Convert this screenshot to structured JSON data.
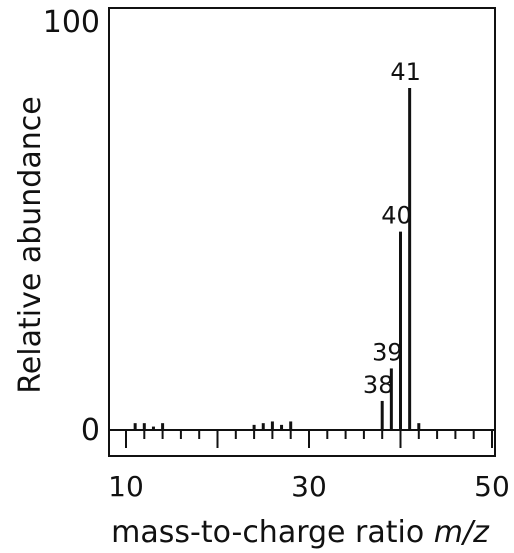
{
  "chart_data": {
    "type": "bar",
    "xlabel": "mass-to-charge ratio",
    "xlabel_italic": "m/z",
    "ylabel": "Relative abundance",
    "xlim": [
      10,
      50
    ],
    "ylim": [
      0,
      100
    ],
    "x_tick_labels": [
      {
        "value": 10,
        "label": "10"
      },
      {
        "value": 30,
        "label": "30"
      },
      {
        "value": 50,
        "label": "50"
      }
    ],
    "y_tick_labels": [
      {
        "value": 0,
        "label": "0"
      },
      {
        "value": 100,
        "label": "100"
      }
    ],
    "x_major_tick_step": 10,
    "x_minor_tick_step": 2,
    "peaks": [
      {
        "mz": 11,
        "abundance": 2
      },
      {
        "mz": 12,
        "abundance": 2
      },
      {
        "mz": 13,
        "abundance": 1
      },
      {
        "mz": 14,
        "abundance": 2
      },
      {
        "mz": 24,
        "abundance": 1.5
      },
      {
        "mz": 25,
        "abundance": 2
      },
      {
        "mz": 26,
        "abundance": 2.5
      },
      {
        "mz": 27,
        "abundance": 1.5
      },
      {
        "mz": 28,
        "abundance": 2.5
      },
      {
        "mz": 38,
        "label": "38",
        "abundance": 8.5
      },
      {
        "mz": 39,
        "label": "39",
        "abundance": 18
      },
      {
        "mz": 40,
        "label": "40",
        "abundance": 58
      },
      {
        "mz": 41,
        "label": "41",
        "abundance": 100
      },
      {
        "mz": 42,
        "abundance": 2
      }
    ],
    "grid": false,
    "legend": "none"
  }
}
